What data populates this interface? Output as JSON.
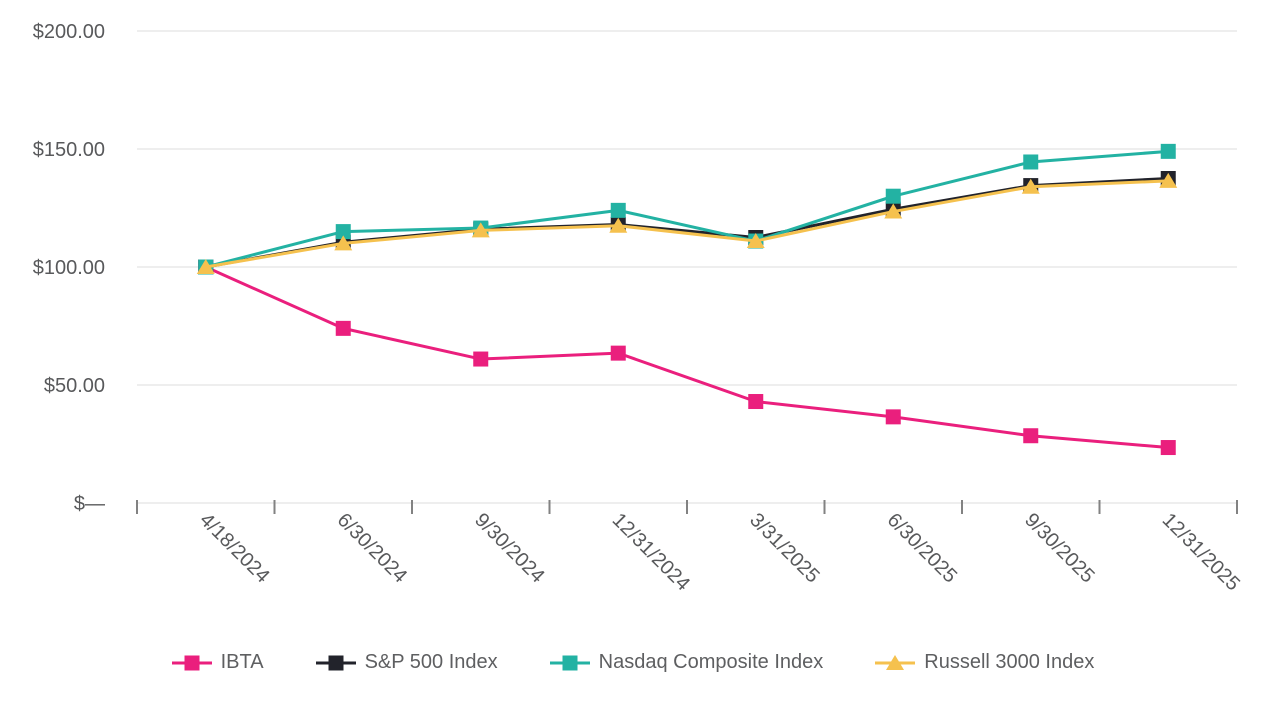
{
  "chart_data": {
    "type": "line",
    "title": "",
    "xlabel": "",
    "ylabel": "",
    "x": [
      "4/18/2024",
      "6/30/2024",
      "9/30/2024",
      "12/31/2024",
      "3/31/2025",
      "6/30/2025",
      "9/30/2025",
      "12/31/2025"
    ],
    "series": [
      {
        "name": "IBTA",
        "color": "#EA1F7D",
        "marker": "square",
        "values": [
          100,
          74,
          61,
          63.5,
          43,
          36.5,
          28.5,
          23.5
        ]
      },
      {
        "name": "S&P 500 Index",
        "color": "#22232B",
        "marker": "square",
        "values": [
          100,
          110.5,
          116,
          118,
          112.5,
          124.5,
          134.5,
          137.5
        ]
      },
      {
        "name": "Nasdaq Composite Index",
        "color": "#23B2A3",
        "marker": "square",
        "values": [
          100,
          115,
          116.5,
          124,
          111,
          130,
          144.5,
          149
        ]
      },
      {
        "name": "Russell 3000 Index",
        "color": "#F5C14E",
        "marker": "triangle",
        "values": [
          100,
          110,
          115.5,
          117.5,
          111,
          123.5,
          134,
          136.5
        ]
      }
    ],
    "ylim": [
      0,
      200
    ],
    "y_ticks": [
      {
        "value": 0,
        "label": "$—"
      },
      {
        "value": 50,
        "label": "$50.00"
      },
      {
        "value": 100,
        "label": "$100.00"
      },
      {
        "value": 150,
        "label": "$150.00"
      },
      {
        "value": 200,
        "label": "$200.00"
      }
    ],
    "grid": "horizontal",
    "legend_position": "bottom",
    "x_label_rotation_deg": 45,
    "colors": {
      "gridline": "#E8E8E8",
      "axis_tick": "#828282",
      "axis_text": "#58595B",
      "legend_text": "#5E5F61",
      "background": "#FFFFFF"
    }
  }
}
